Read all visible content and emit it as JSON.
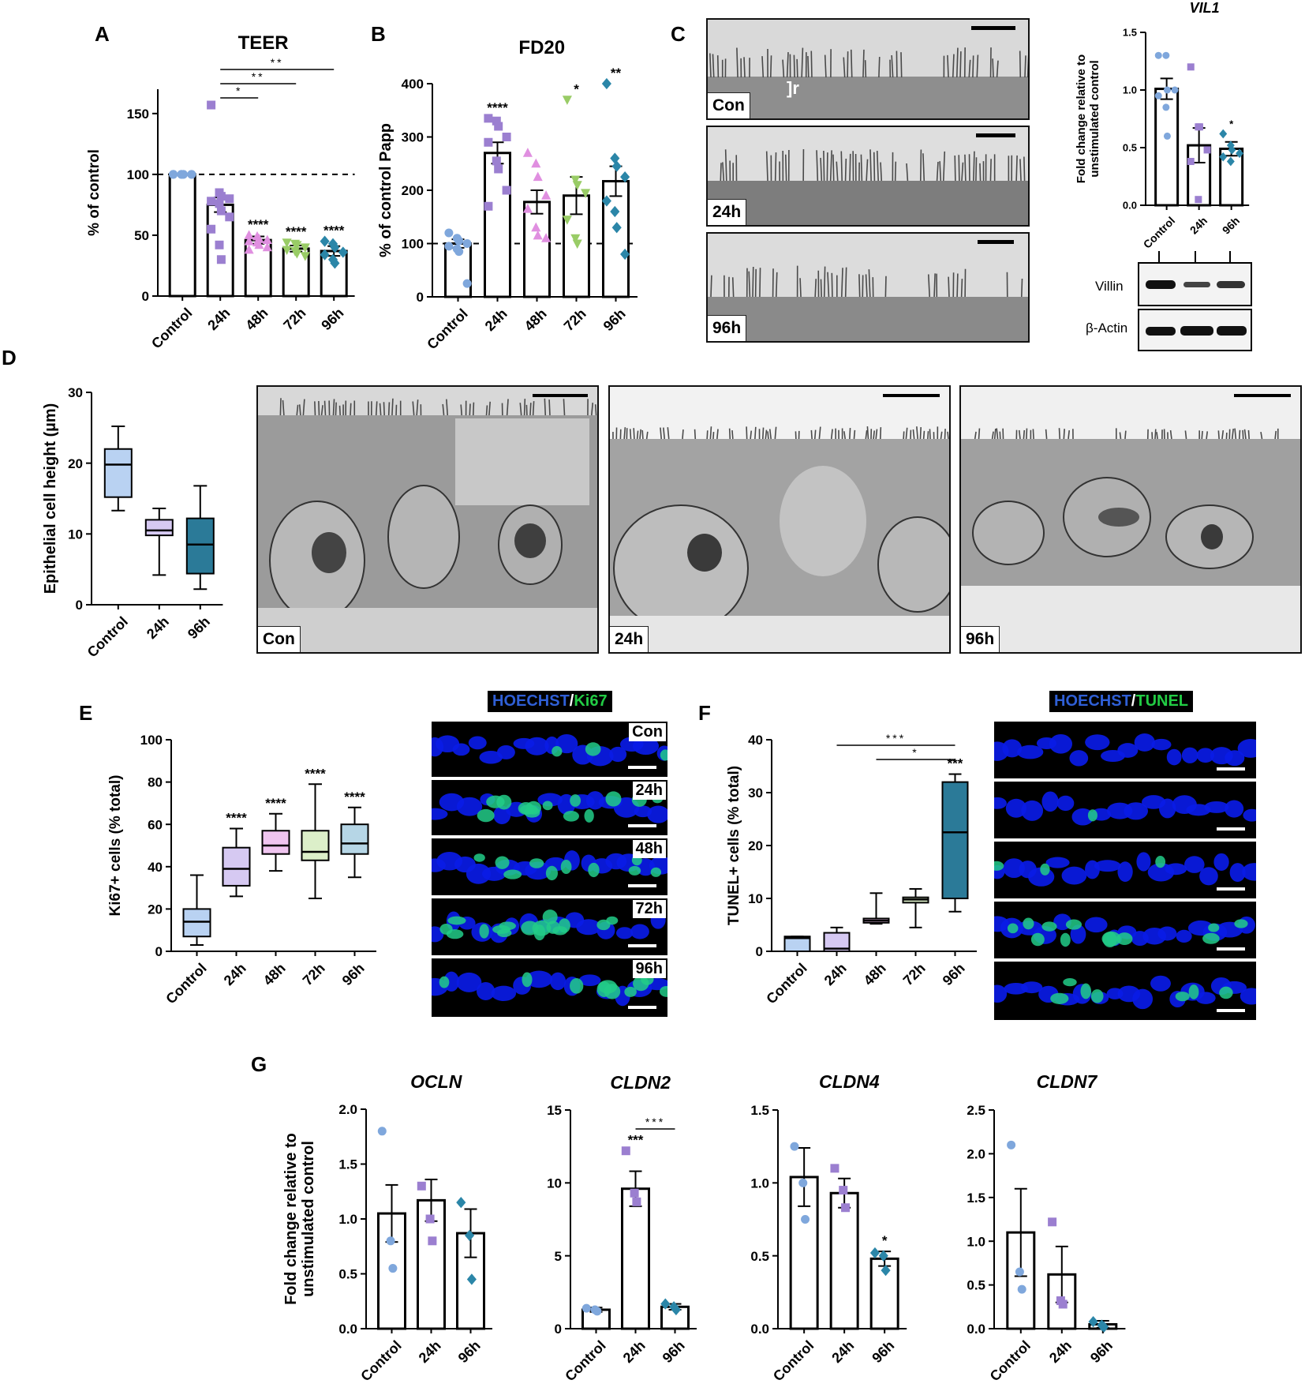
{
  "panel_letters": [
    "A",
    "B",
    "C",
    "D",
    "E",
    "F",
    "G"
  ],
  "chart_data": [
    {
      "id": "A",
      "type": "bar",
      "title": "TEER",
      "ylabel": "% of control",
      "xlabel": "",
      "categories": [
        "Control",
        "24h",
        "48h",
        "72h",
        "96h"
      ],
      "values": [
        100,
        75,
        46,
        39,
        37
      ],
      "errors": [
        0,
        6,
        3,
        2.5,
        4
      ],
      "ylim": [
        0,
        170
      ],
      "yticks": [
        0,
        50,
        100,
        150
      ],
      "reference_line": 100,
      "points": [
        [
          100,
          100,
          100,
          100,
          100,
          100,
          100,
          100,
          100,
          100
        ],
        [
          157,
          85,
          82,
          80,
          78,
          76,
          70,
          65,
          55,
          42,
          30
        ],
        [
          50,
          49,
          47,
          46,
          45,
          44,
          42,
          40,
          38
        ],
        [
          44,
          43,
          42,
          40,
          38,
          37,
          35,
          33
        ],
        [
          45,
          43,
          40,
          36,
          34,
          30,
          27
        ]
      ],
      "stars": [
        "",
        "",
        "****",
        "****",
        "****"
      ],
      "comparisons": [
        {
          "from": 1,
          "to": 4,
          "label": "**"
        },
        {
          "from": 1,
          "to": 3,
          "label": "**"
        },
        {
          "from": 1,
          "to": 2,
          "label": "*"
        }
      ],
      "colors": [
        "#7fa7dc",
        "#9b7fd0",
        "#e08fe0",
        "#99cc66",
        "#2b86a8"
      ],
      "markers": [
        "circle",
        "square",
        "triangle",
        "triangle-down",
        "diamond"
      ]
    },
    {
      "id": "B",
      "type": "bar",
      "title": "FD20",
      "ylabel": "% of control Papp",
      "xlabel": "",
      "categories": [
        "Control",
        "24h",
        "48h",
        "72h",
        "96h"
      ],
      "values": [
        100,
        270,
        178,
        190,
        217
      ],
      "errors": [
        8,
        20,
        22,
        35,
        28
      ],
      "ylim": [
        0,
        400
      ],
      "yticks": [
        0,
        100,
        200,
        300,
        400
      ],
      "reference_line": 100,
      "points": [
        [
          120,
          110,
          105,
          100,
          95,
          90,
          85,
          25
        ],
        [
          335,
          330,
          320,
          300,
          290,
          255,
          240,
          200,
          170
        ],
        [
          270,
          250,
          225,
          190,
          165,
          130,
          115,
          110
        ],
        [
          370,
          220,
          210,
          195,
          145,
          110,
          100
        ],
        [
          400,
          260,
          245,
          225,
          180,
          160,
          130,
          80
        ]
      ],
      "stars": [
        "",
        "****",
        "",
        "*",
        "**"
      ],
      "comparisons": [],
      "colors": [
        "#7fa7dc",
        "#9b7fd0",
        "#e08fe0",
        "#99cc66",
        "#2b86a8"
      ],
      "markers": [
        "circle",
        "square",
        "triangle",
        "triangle-down",
        "diamond"
      ]
    },
    {
      "id": "C-VIL1",
      "type": "bar",
      "title": "VIL1",
      "ylabel": "Fold change relative to\nunstimulated control",
      "xlabel": "",
      "categories": [
        "Control",
        "24h",
        "96h"
      ],
      "values": [
        1.01,
        0.52,
        0.49
      ],
      "errors": [
        0.09,
        0.15,
        0.06
      ],
      "ylim": [
        0,
        1.5
      ],
      "yticks": [
        0.0,
        0.5,
        1.0,
        1.5
      ],
      "tick_decimals": 1,
      "points": [
        [
          1.3,
          1.3,
          1.0,
          1.0,
          0.95,
          0.85,
          0.6
        ],
        [
          1.2,
          0.68,
          0.68,
          0.48,
          0.38,
          0.05
        ],
        [
          0.62,
          0.52,
          0.48,
          0.45,
          0.42,
          0.38
        ]
      ],
      "stars": [
        "",
        "",
        "*"
      ],
      "comparisons": [],
      "colors": [
        "#7fa7dc",
        "#9b7fd0",
        "#2b86a8"
      ],
      "markers": [
        "circle",
        "square",
        "diamond"
      ]
    },
    {
      "id": "D",
      "type": "box",
      "title": "",
      "ylabel": "Epithelial cell height (µm)",
      "xlabel": "",
      "categories": [
        "Control",
        "24h",
        "96h"
      ],
      "boxes": [
        {
          "min": 13.3,
          "q1": 15.2,
          "median": 19.8,
          "q3": 22.0,
          "max": 25.2
        },
        {
          "min": 4.2,
          "q1": 9.8,
          "median": 10.5,
          "q3": 12.0,
          "max": 13.6
        },
        {
          "min": 2.2,
          "q1": 4.4,
          "median": 8.5,
          "q3": 12.2,
          "max": 16.8
        }
      ],
      "ylim": [
        0,
        30
      ],
      "yticks": [
        0,
        10,
        20,
        30
      ],
      "stars": [
        "",
        "",
        ""
      ],
      "colors": [
        "#b9d2f2",
        "#d6c9f2",
        "#2b7a98"
      ]
    },
    {
      "id": "E",
      "type": "box",
      "title": "",
      "ylabel": "Ki67+ cells (% total)",
      "xlabel": "",
      "categories": [
        "Control",
        "24h",
        "48h",
        "72h",
        "96h"
      ],
      "boxes": [
        {
          "min": 3,
          "q1": 7,
          "median": 14,
          "q3": 20,
          "max": 36
        },
        {
          "min": 26,
          "q1": 31,
          "median": 39,
          "q3": 49,
          "max": 58
        },
        {
          "min": 38,
          "q1": 46,
          "median": 50,
          "q3": 57,
          "max": 65
        },
        {
          "min": 25,
          "q1": 43,
          "median": 47,
          "q3": 57,
          "max": 79
        },
        {
          "min": 35,
          "q1": 46,
          "median": 51,
          "q3": 60,
          "max": 68
        }
      ],
      "ylim": [
        0,
        100
      ],
      "yticks": [
        0,
        20,
        40,
        60,
        80,
        100
      ],
      "stars": [
        "",
        "****",
        "****",
        "****",
        "****"
      ],
      "colors": [
        "#b9d2f2",
        "#d6c9f2",
        "#f0c5f0",
        "#dcefc9",
        "#b6d6e6"
      ]
    },
    {
      "id": "F",
      "type": "box",
      "title": "",
      "ylabel": "TUNEL+ cells (% total)",
      "xlabel": "",
      "categories": [
        "Control",
        "24h",
        "48h",
        "72h",
        "96h"
      ],
      "boxes": [
        {
          "min": 0,
          "q1": 0,
          "median": 2.5,
          "q3": 2.8,
          "max": 2.8
        },
        {
          "min": 0,
          "q1": 0,
          "median": 0.5,
          "q3": 3.5,
          "max": 4.5
        },
        {
          "min": 5.2,
          "q1": 5.4,
          "median": 5.8,
          "q3": 6.2,
          "max": 11
        },
        {
          "min": 4.5,
          "q1": 9.2,
          "median": 9.8,
          "q3": 10.2,
          "max": 11.8
        },
        {
          "min": 7.5,
          "q1": 10,
          "median": 22.5,
          "q3": 32,
          "max": 33.5
        }
      ],
      "ylim": [
        0,
        40
      ],
      "yticks": [
        0,
        10,
        20,
        30,
        40
      ],
      "stars": [
        "",
        "",
        "",
        "",
        "***"
      ],
      "comparisons": [
        {
          "from": 1,
          "to": 4,
          "label": "***"
        },
        {
          "from": 2,
          "to": 4,
          "label": "*"
        }
      ],
      "colors": [
        "#b9d2f2",
        "#d6c9f2",
        "#f0c5f0",
        "#dcefc9",
        "#2b7a98"
      ]
    },
    {
      "id": "G-OCLN",
      "type": "bar",
      "title": "OCLN",
      "ylabel": "Fold change relative to\nunstimulated control",
      "xlabel": "",
      "categories": [
        "Control",
        "24h",
        "96h"
      ],
      "values": [
        1.05,
        1.17,
        0.87
      ],
      "errors": [
        0.26,
        0.19,
        0.22
      ],
      "ylim": [
        0,
        2.0
      ],
      "yticks": [
        0.0,
        0.5,
        1.0,
        1.5,
        2.0
      ],
      "tick_decimals": 1,
      "points": [
        [
          1.8,
          0.8,
          0.55
        ],
        [
          1.3,
          1.0,
          0.8
        ],
        [
          1.15,
          0.85,
          0.45
        ]
      ],
      "stars": [
        "",
        "",
        ""
      ],
      "comparisons": [],
      "colors": [
        "#7fa7dc",
        "#9b7fd0",
        "#2b86a8"
      ],
      "markers": [
        "circle",
        "square",
        "diamond"
      ]
    },
    {
      "id": "G-CLDN2",
      "type": "bar",
      "title": "CLDN2",
      "ylabel": "",
      "xlabel": "",
      "categories": [
        "Control",
        "24h",
        "96h"
      ],
      "values": [
        1.3,
        9.6,
        1.5
      ],
      "errors": [
        0.15,
        1.2,
        0.2
      ],
      "ylim": [
        0,
        15
      ],
      "yticks": [
        0,
        5,
        10,
        15
      ],
      "tick_decimals": 0,
      "points": [
        [
          1.4,
          1.3,
          1.2
        ],
        [
          12.2,
          9.3,
          8.7
        ],
        [
          1.7,
          1.5,
          1.3
        ]
      ],
      "stars": [
        "",
        "***",
        ""
      ],
      "comparisons": [
        {
          "from": 1,
          "to": 2,
          "label": "***"
        }
      ],
      "colors": [
        "#7fa7dc",
        "#9b7fd0",
        "#2b86a8"
      ],
      "markers": [
        "circle",
        "square",
        "diamond"
      ]
    },
    {
      "id": "G-CLDN4",
      "type": "bar",
      "title": "CLDN4",
      "ylabel": "",
      "xlabel": "",
      "categories": [
        "Control",
        "24h",
        "96h"
      ],
      "values": [
        1.04,
        0.93,
        0.48
      ],
      "errors": [
        0.2,
        0.1,
        0.05
      ],
      "ylim": [
        0,
        1.5
      ],
      "yticks": [
        0.0,
        0.5,
        1.0,
        1.5
      ],
      "tick_decimals": 1,
      "points": [
        [
          1.25,
          1.0,
          0.75
        ],
        [
          1.1,
          0.95,
          0.83
        ],
        [
          0.52,
          0.5,
          0.4
        ]
      ],
      "stars": [
        "",
        "",
        "*"
      ],
      "comparisons": [],
      "colors": [
        "#7fa7dc",
        "#9b7fd0",
        "#2b86a8"
      ],
      "markers": [
        "circle",
        "square",
        "diamond"
      ]
    },
    {
      "id": "G-CLDN7",
      "type": "bar",
      "title": "CLDN7",
      "ylabel": "",
      "xlabel": "",
      "categories": [
        "Control",
        "24h",
        "96h"
      ],
      "values": [
        1.1,
        0.62,
        0.05
      ],
      "errors": [
        0.5,
        0.32,
        0.04
      ],
      "ylim": [
        0,
        2.5
      ],
      "yticks": [
        0.0,
        0.5,
        1.0,
        1.5,
        2.0,
        2.5
      ],
      "tick_decimals": 1,
      "points": [
        [
          2.1,
          0.65,
          0.45
        ],
        [
          1.22,
          0.32,
          0.28
        ],
        [
          0.08,
          0.04,
          0.02
        ]
      ],
      "stars": [
        "",
        "",
        ""
      ],
      "comparisons": [],
      "colors": [
        "#7fa7dc",
        "#9b7fd0",
        "#2b86a8"
      ],
      "markers": [
        "circle",
        "square",
        "diamond"
      ]
    }
  ],
  "micrographs": {
    "c_tem": [
      "Con",
      "24h",
      "96h"
    ],
    "c_tem_annotation": "r",
    "d_tem": [
      "Con",
      "24h",
      "96h"
    ]
  },
  "western_blot": {
    "rows": [
      "Villin",
      "β-Actin"
    ]
  },
  "fluorescence": {
    "e": {
      "stain_a": "HOECHST",
      "separator": "/",
      "stain_b": "Ki67",
      "labels": [
        "Con",
        "24h",
        "48h",
        "72h",
        "96h"
      ]
    },
    "f": {
      "stain_a": "HOECHST",
      "separator": "/",
      "stain_b": "TUNEL",
      "labels": [
        "",
        "",
        "",
        "",
        ""
      ]
    }
  },
  "colors": {
    "hoechst": "#2f5fd6",
    "green": "#22cc44",
    "nucleus": "#0a1be6",
    "tem_bg": "#8d8d8d"
  }
}
